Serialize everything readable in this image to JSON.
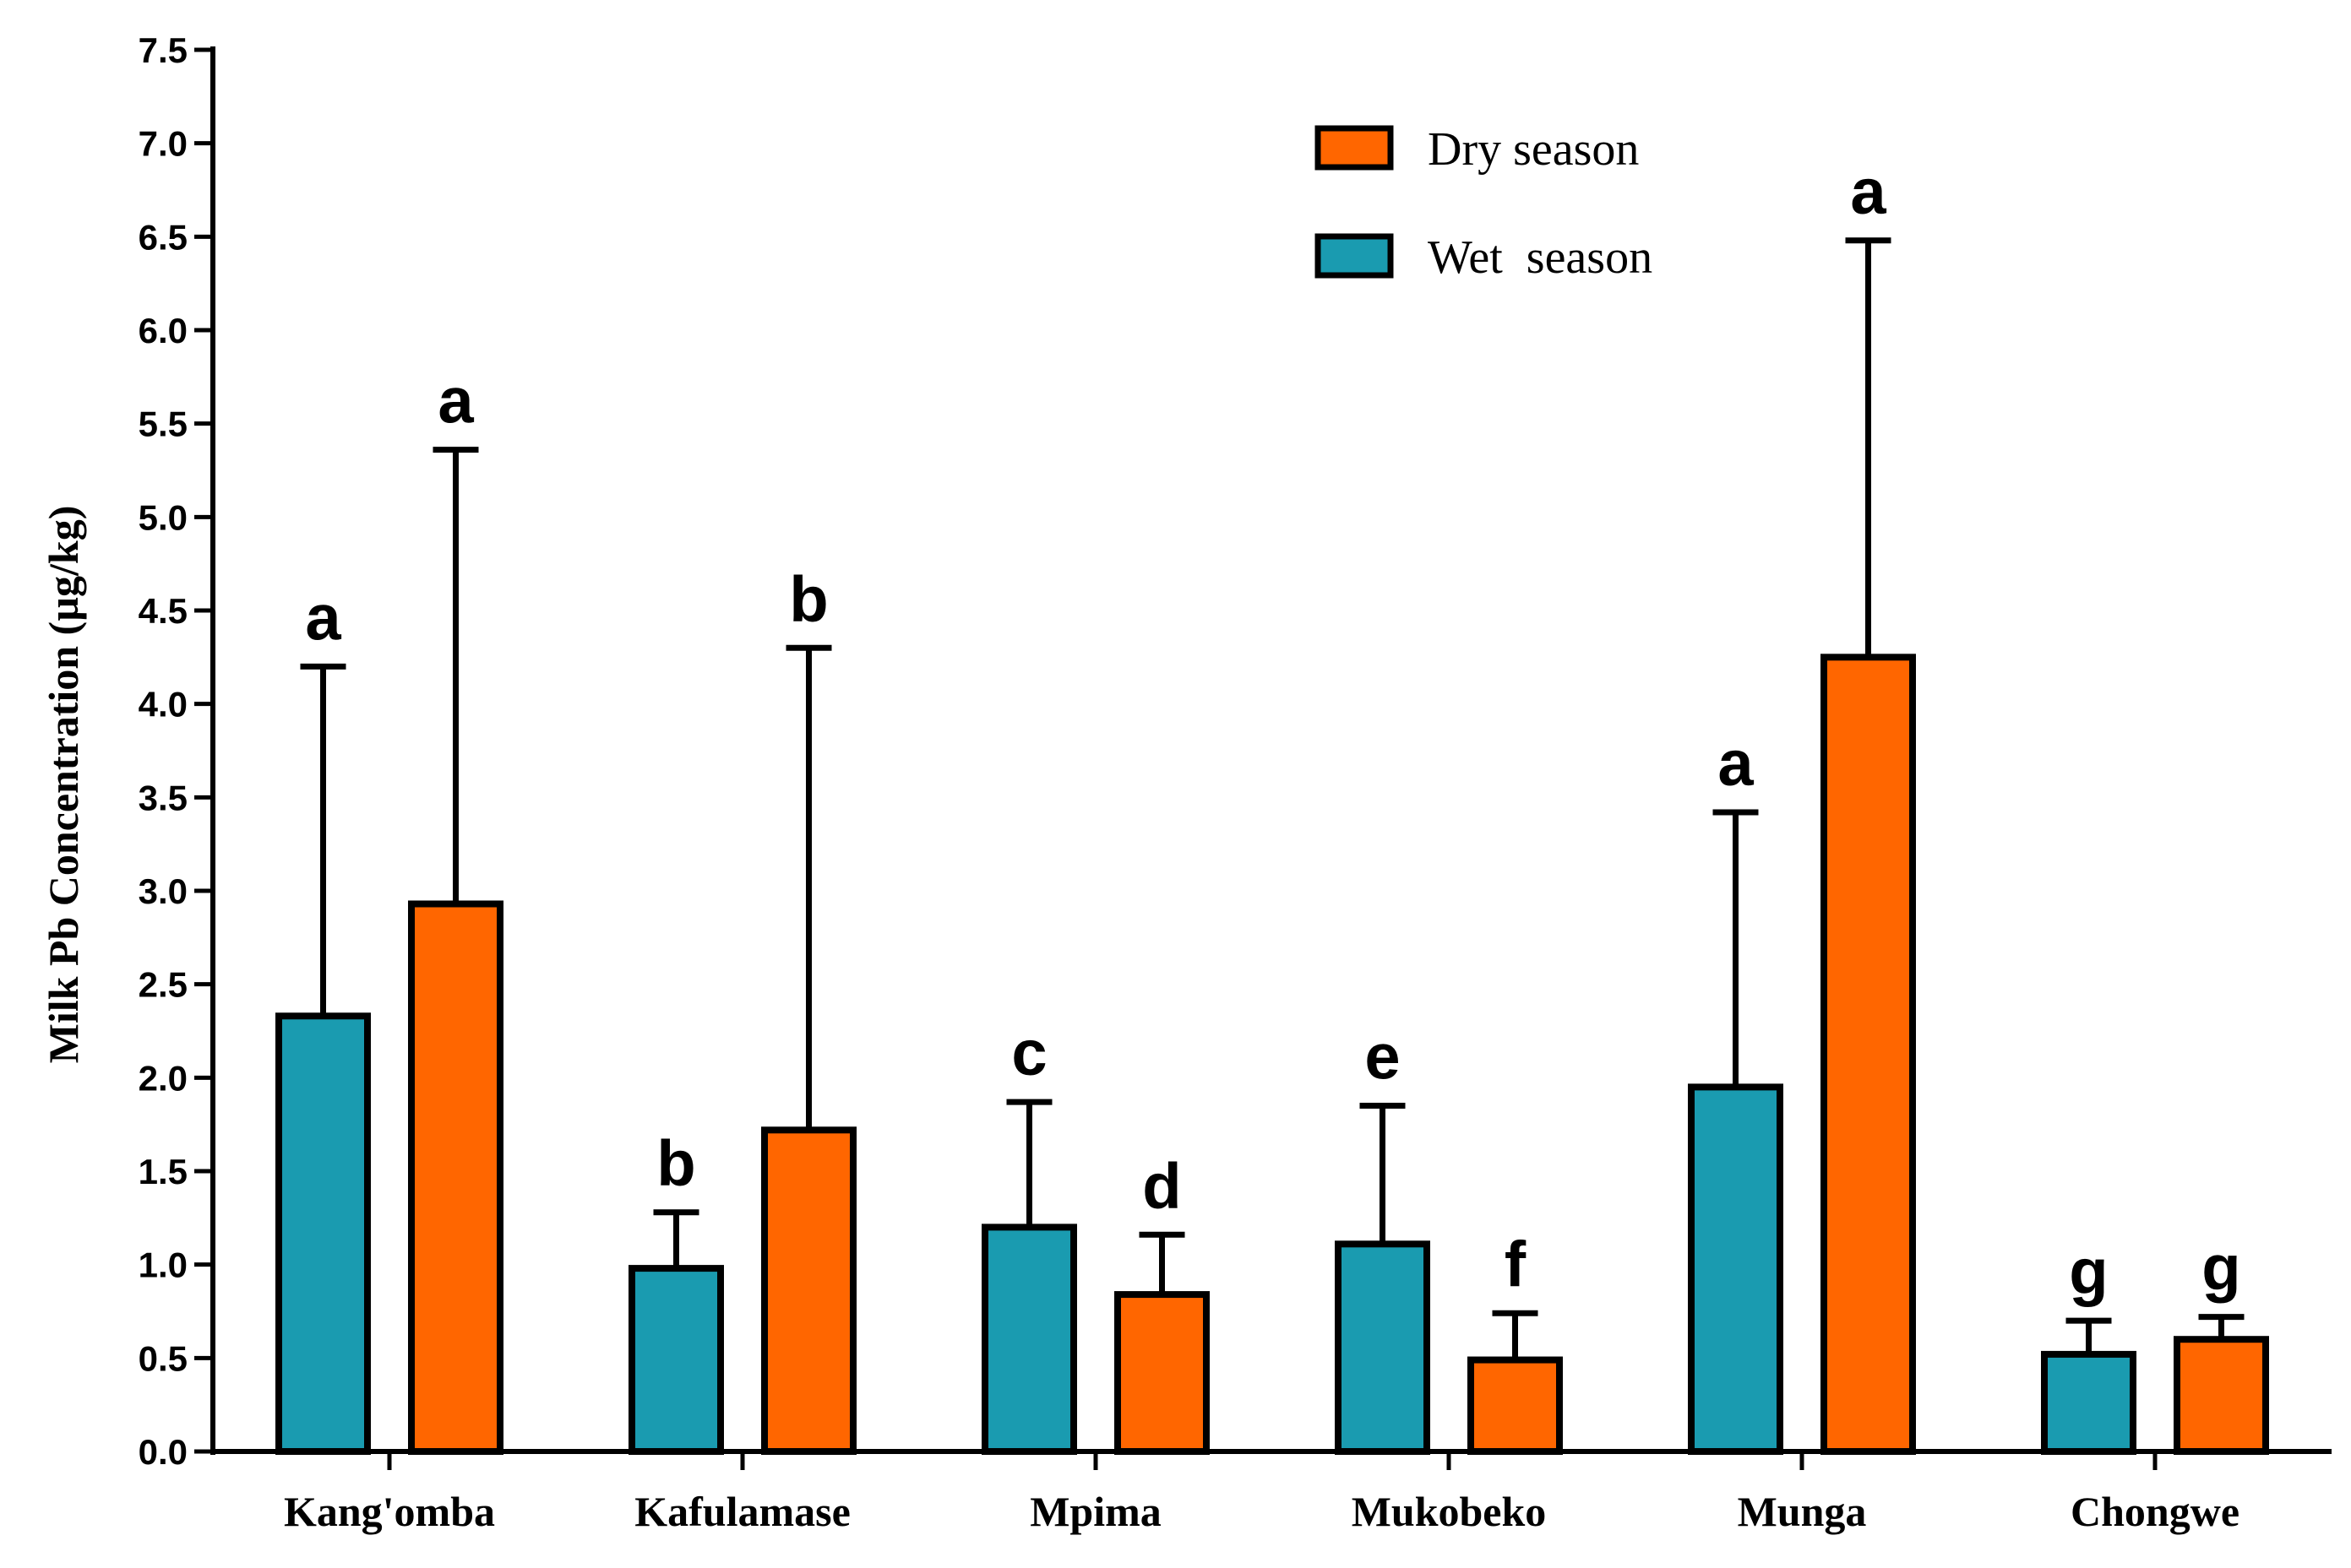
{
  "chart_data": {
    "type": "bar",
    "title": "",
    "xlabel": "",
    "ylabel": "Milk Pb Concentration  (µg/kg)",
    "ylim": [
      0,
      7.5
    ],
    "ytick_labels": [
      "0.0",
      "0.5",
      "1.0",
      "1.5",
      "2.0",
      "2.5",
      "3.0",
      "3.5",
      "4.0",
      "4.5",
      "5.0",
      "5.5",
      "6.0",
      "6.5",
      "7.0",
      "7.5"
    ],
    "grid": false,
    "legend_position": "top-right",
    "categories": [
      "Kang'omba",
      "Kafulamase",
      "Mpima",
      "Mukobeko",
      "Munga",
      "Chongwe"
    ],
    "series": [
      {
        "name": "Wet  season",
        "color": "#1a9bb0",
        "values": [
          2.33,
          0.98,
          1.2,
          1.11,
          1.95,
          0.52
        ],
        "error": [
          1.87,
          0.3,
          0.67,
          0.74,
          1.47,
          0.18
        ],
        "significance": [
          "a",
          "b",
          "c",
          "e",
          "a",
          "g"
        ]
      },
      {
        "name": "Dry season",
        "color": "#ff6600",
        "values": [
          2.93,
          1.72,
          0.84,
          0.49,
          4.25,
          0.6
        ],
        "error": [
          2.43,
          2.58,
          0.32,
          0.25,
          2.23,
          0.12
        ],
        "significance": [
          "a",
          "b",
          "d",
          "f",
          "a",
          "g"
        ]
      }
    ],
    "legend_order": [
      "Dry season",
      "Wet  season"
    ]
  }
}
